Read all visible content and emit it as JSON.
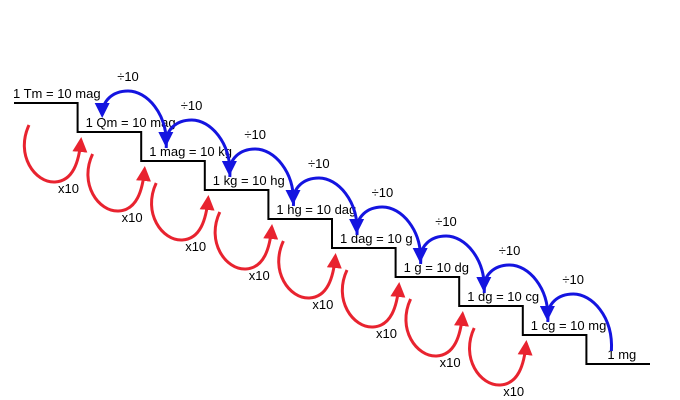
{
  "steps": [
    {
      "label": "1 Tm = 10 mag"
    },
    {
      "label": "1 Qm = 10 mag"
    },
    {
      "label": "1 mag = 10 kg"
    },
    {
      "label": "1 kg = 10 hg"
    },
    {
      "label": "1 hg = 10 dag"
    },
    {
      "label": "1 dag = 10 g"
    },
    {
      "label": "1 g = 10 dg"
    },
    {
      "label": "1 dg = 10 cg"
    },
    {
      "label": "1 cg = 10 mg"
    },
    {
      "label": "1 mg"
    }
  ],
  "multiply_label": "x10",
  "divide_label": "÷10",
  "colors": {
    "stair": "#000000",
    "multiply_arrow": "#e8232f",
    "divide_arrow": "#1414e0",
    "text": "#000000"
  },
  "icons": {
    "multiply_arrow": "curved-arrow-down-right-icon",
    "divide_arrow": "curved-arrow-up-left-icon"
  }
}
